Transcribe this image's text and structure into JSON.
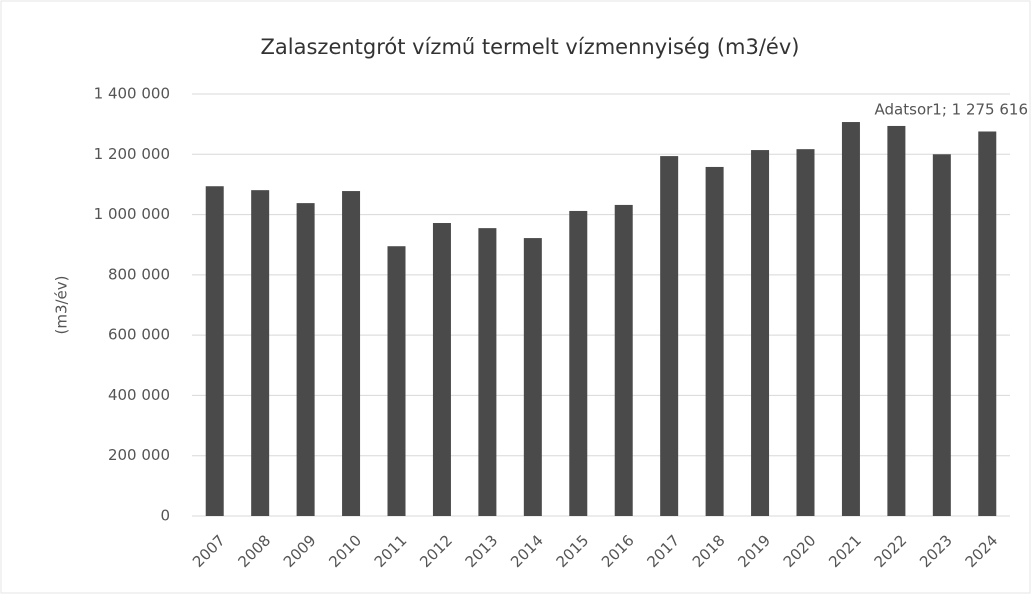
{
  "chart_data": {
    "type": "bar",
    "title": "Zalaszentgrót vízmű termelt vízmennyiség (m3/év)",
    "y_label": "(m3/év)",
    "categories": [
      "2007",
      "2008",
      "2009",
      "2010",
      "2011",
      "2012",
      "2013",
      "2014",
      "2015",
      "2016",
      "2017",
      "2018",
      "2019",
      "2020",
      "2021",
      "2022",
      "2023",
      "2024"
    ],
    "series": [
      {
        "name": "Adatsor1",
        "color": "#4a4a4a",
        "values": [
          1094000,
          1081000,
          1038000,
          1078000,
          895000,
          972000,
          955000,
          922000,
          1012000,
          1032000,
          1194000,
          1158000,
          1214000,
          1217000,
          1307000,
          1294000,
          1200000,
          1275616
        ],
        "value_labels": [
          null,
          null,
          null,
          null,
          null,
          null,
          null,
          null,
          null,
          null,
          null,
          null,
          null,
          null,
          null,
          null,
          null,
          "Adatsor1; 1 275 616"
        ]
      }
    ],
    "ylim": [
      0,
      1400000
    ],
    "yticks": [
      0,
      {
        "value": 200000,
        "label": "200 000"
      },
      {
        "value": 400000,
        "label": "400 000"
      },
      {
        "value": 600000,
        "label": "600 000"
      },
      {
        "value": 800000,
        "label": "800 000"
      },
      {
        "value": 1000000,
        "label": "1 000 000"
      },
      {
        "value": 1200000,
        "label": "1 200 000"
      },
      {
        "value": 1400000,
        "label": "1 400 000"
      }
    ],
    "grid": true,
    "legend": false
  }
}
